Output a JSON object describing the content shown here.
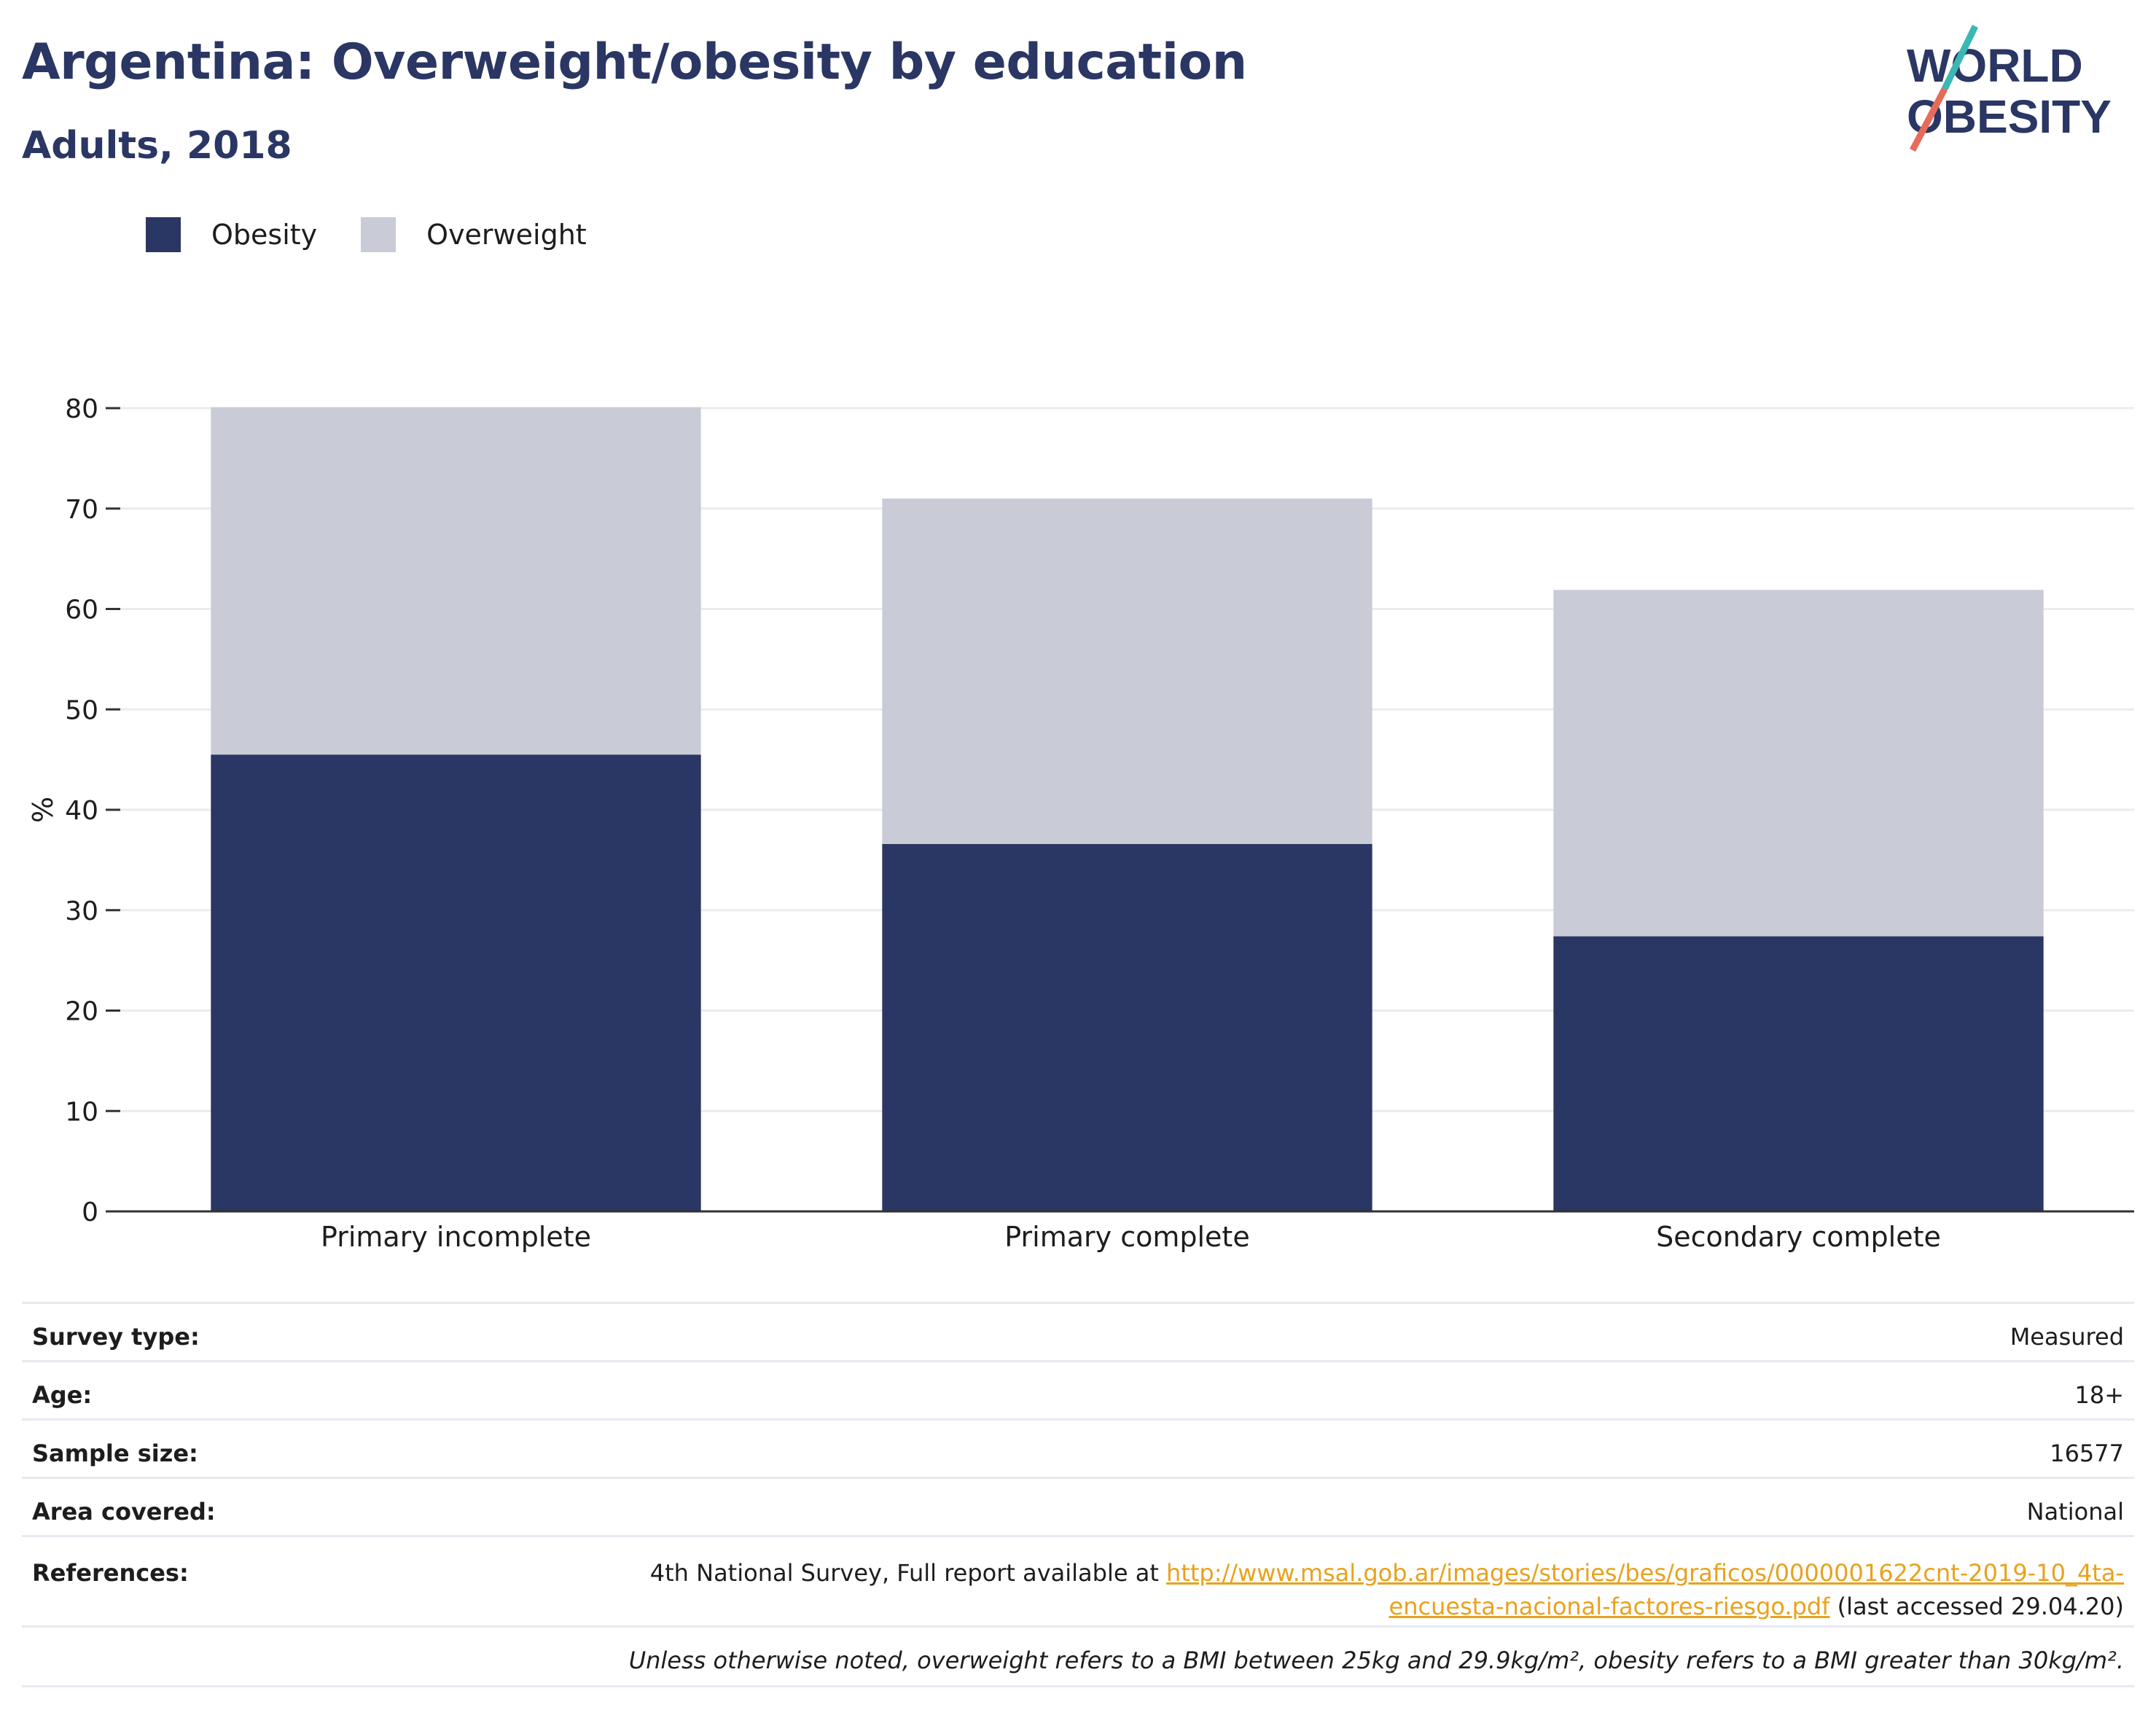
{
  "title": "Argentina: Overweight/obesity by education",
  "subtitle": "Adults, 2018",
  "logo": {
    "line1": "WORLD",
    "line2": "OBESITY"
  },
  "colors": {
    "obesity": "#2a3663",
    "overweight": "#c9ccd7",
    "link": "#e8a21d",
    "title": "#2a3663"
  },
  "chart_data": {
    "type": "bar",
    "stacked": true,
    "categories": [
      "Primary incomplete",
      "Primary complete",
      "Secondary complete"
    ],
    "series": [
      {
        "name": "Obesity",
        "values": [
          45.5,
          36.6,
          27.4
        ]
      },
      {
        "name": "Overweight",
        "values": [
          34.6,
          34.4,
          34.5
        ]
      }
    ],
    "ylabel": "%",
    "xlabel": "",
    "ylim": [
      0,
      80
    ],
    "yticks": [
      0,
      10,
      20,
      30,
      40,
      50,
      60,
      70,
      80
    ],
    "grid": true,
    "legend": "top-left"
  },
  "info": {
    "survey_type": {
      "label": "Survey type:",
      "value": "Measured"
    },
    "age": {
      "label": "Age:",
      "value": "18+"
    },
    "sample_size": {
      "label": "Sample size:",
      "value": "16577"
    },
    "area": {
      "label": "Area covered:",
      "value": "National"
    },
    "references": {
      "label": "References:",
      "prefix": "4th National Survey, Full report available at ",
      "link_line1": "http://www.msal.gob.ar/images/stories/bes/graficos/0000001622cnt-2019-10_4ta-",
      "link_line2": "encuesta-nacional-factores-riesgo.pdf",
      "suffix": " (last accessed 29.04.20)"
    },
    "note": "Unless otherwise noted, overweight refers to a BMI between 25kg and 29.9kg/m², obesity refers to a BMI greater than 30kg/m²."
  }
}
